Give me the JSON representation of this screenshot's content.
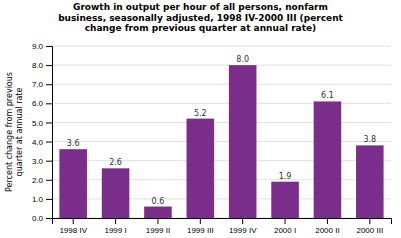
{
  "chart_data": {
    "type": "bar",
    "title": "Growth in output per hour of all persons, nonfarm\nbusiness, seasonally adjusted, 1998 IV-2000 III (percent\nchange from previous quarter at annual rate)",
    "categories": [
      "1998 IV",
      "1999 I",
      "1999 II",
      "1999 III",
      "1999 IV",
      "2000 I",
      "2000 II",
      "2000 III"
    ],
    "values": [
      3.6,
      2.6,
      0.6,
      5.2,
      8.0,
      1.9,
      6.1,
      3.8
    ],
    "value_labels": [
      "3.6",
      "2.6",
      "0.6",
      "5.2",
      "8.0",
      "1.9",
      "6.1",
      "3.8"
    ],
    "data_labels": true,
    "color": "#7B2D8B",
    "y_label": "Percent change from previous\nquarter at annual rate",
    "ylim": [
      0,
      9.0
    ],
    "yticks": [
      {
        "value": 0.0,
        "label": "0.0"
      },
      {
        "value": 1.0,
        "label": "1.0"
      },
      {
        "value": 2.0,
        "label": "2.0"
      },
      {
        "value": 3.0,
        "label": "3.0"
      },
      {
        "value": 4.0,
        "label": "4.0"
      },
      {
        "value": 5.0,
        "label": "5.0"
      },
      {
        "value": 6.0,
        "label": "6.0"
      },
      {
        "value": 7.0,
        "label": "7.0"
      },
      {
        "value": 8.0,
        "label": "8.0"
      },
      {
        "value": 9.0,
        "label": "9.0"
      }
    ],
    "grid": true
  }
}
